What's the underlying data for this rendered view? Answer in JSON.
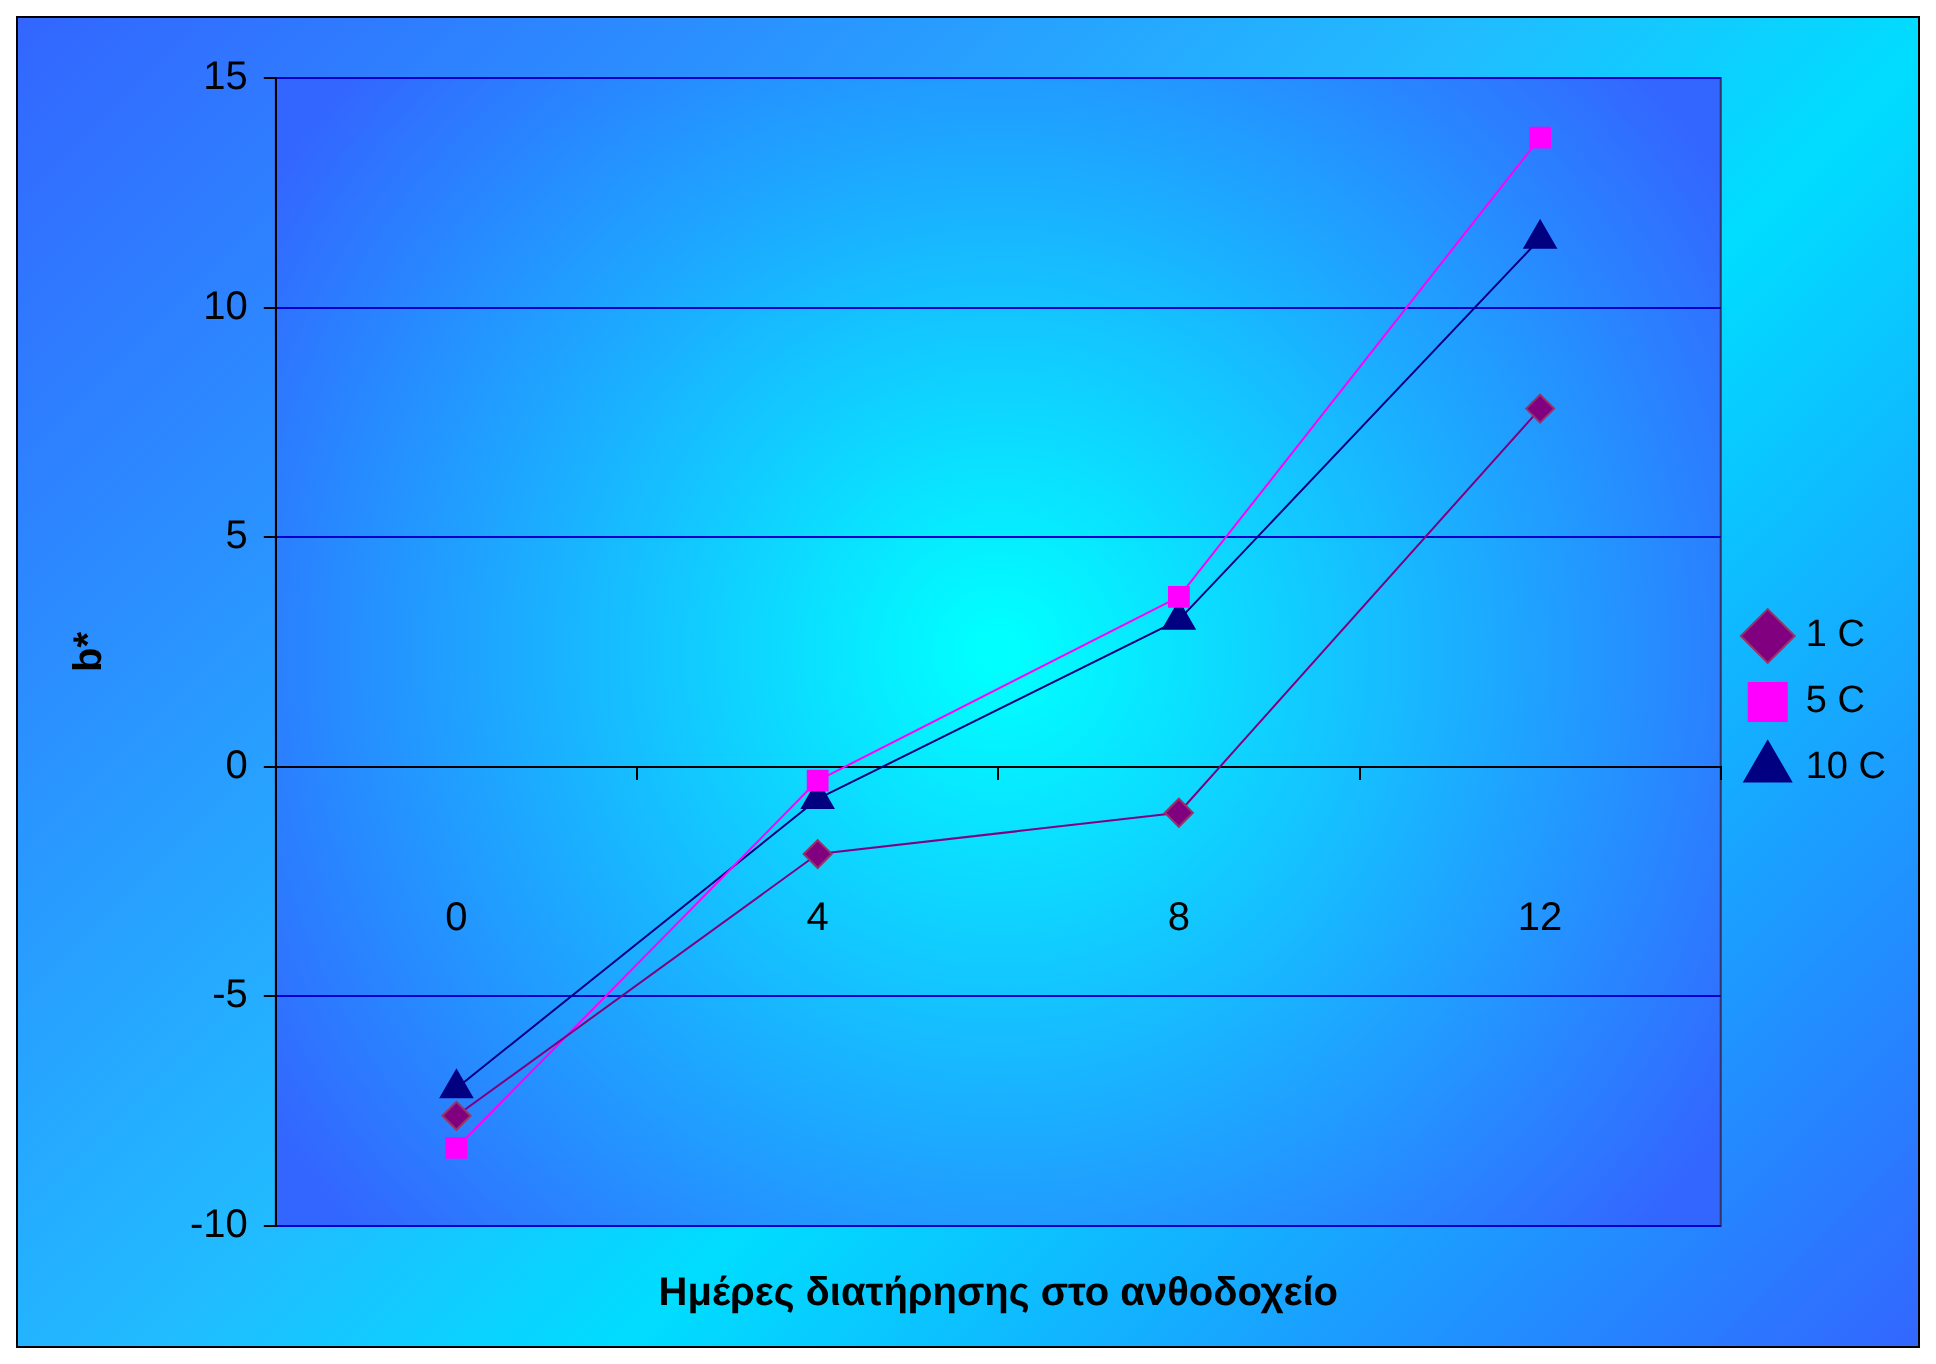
{
  "chart_data": {
    "type": "line",
    "xlabel": "Ημέρες διατήρησης στο ανθοδοχείο",
    "ylabel": "b*",
    "categories": [
      "0",
      "4",
      "8",
      "12"
    ],
    "series": [
      {
        "name": "1 C",
        "color": "#800080",
        "marker": "diamond",
        "values": [
          -7.6,
          -1.9,
          -1.0,
          7.8
        ]
      },
      {
        "name": "5 C",
        "color": "#ff00ff",
        "marker": "square",
        "values": [
          -8.3,
          -0.3,
          3.7,
          13.7
        ]
      },
      {
        "name": "10 C",
        "color": "#000080",
        "marker": "triangle",
        "values": [
          -7.0,
          -0.7,
          3.2,
          11.5
        ]
      }
    ],
    "ylim": [
      -10,
      15
    ],
    "yticks": [
      -10,
      -5,
      0,
      5,
      10,
      15
    ],
    "grid": "y",
    "legend": "right",
    "line_style": "solid"
  }
}
